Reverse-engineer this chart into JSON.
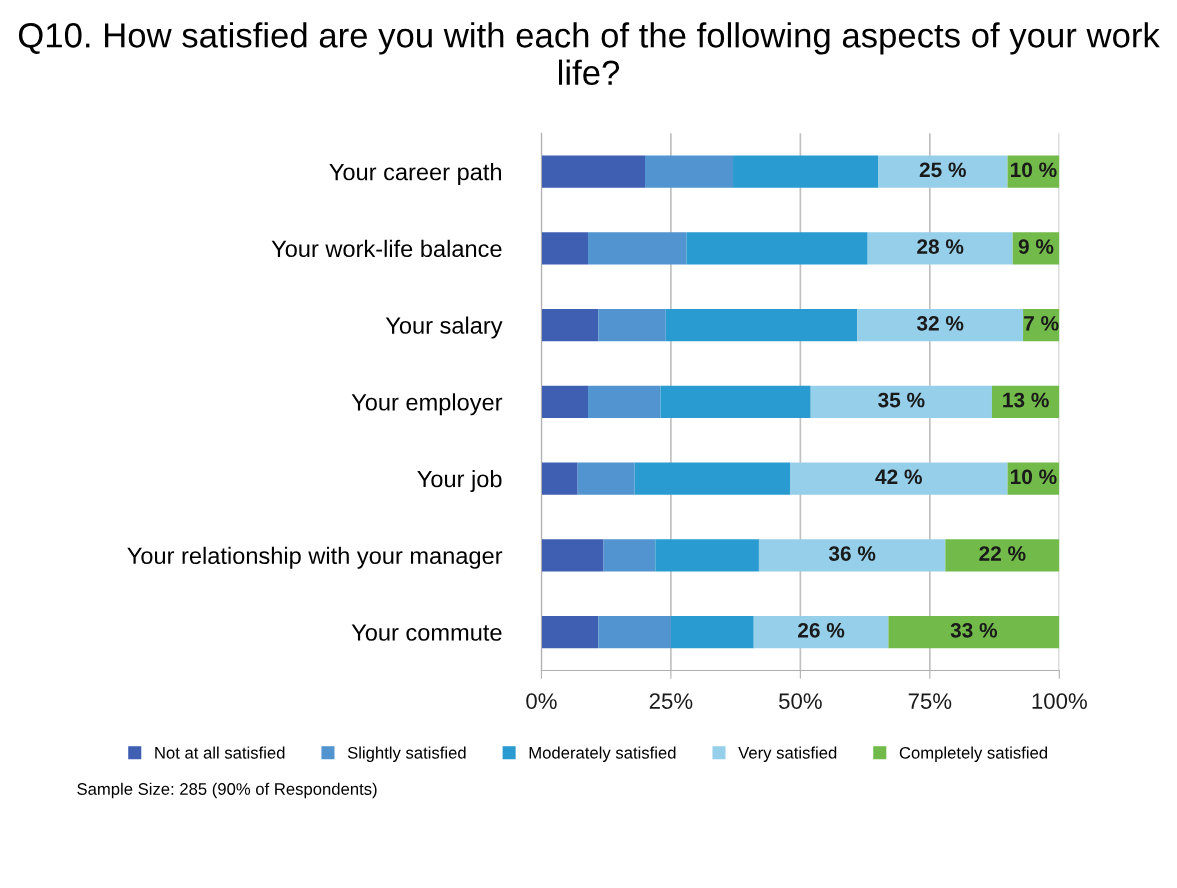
{
  "chart_data": {
    "type": "bar",
    "orientation": "horizontal",
    "stacked": true,
    "title": "Q10. How satisfied are you with each of the following aspects of your work life?",
    "categories": [
      "Your career path",
      "Your work-life balance",
      "Your salary",
      "Your employer",
      "Your job",
      "Your relationship with your manager",
      "Your commute"
    ],
    "series": [
      {
        "name": "Not at all satisfied",
        "color": "#3f5fb3",
        "values": [
          20,
          9,
          11,
          9,
          7,
          12,
          11
        ]
      },
      {
        "name": "Slightly satisfied",
        "color": "#5294cf",
        "values": [
          17,
          19,
          13,
          14,
          11,
          10,
          14
        ]
      },
      {
        "name": "Moderately satisfied",
        "color": "#2a9bd0",
        "values": [
          28,
          35,
          37,
          29,
          30,
          20,
          16
        ]
      },
      {
        "name": "Very satisfied",
        "color": "#96cfea",
        "values": [
          25,
          28,
          32,
          35,
          42,
          36,
          26
        ],
        "value_labels": [
          "25 %",
          "28 %",
          "32 %",
          "35 %",
          "42 %",
          "36 %",
          "26 %"
        ]
      },
      {
        "name": "Completely satisfied",
        "color": "#72bb4b",
        "values": [
          10,
          9,
          7,
          13,
          10,
          22,
          33
        ],
        "value_labels": [
          "10 %",
          "9 %",
          "7 %",
          "13 %",
          "10 %",
          "22 %",
          "33 %"
        ]
      }
    ],
    "xlim": [
      0,
      100
    ],
    "xticks": [
      {
        "value": 0,
        "label": "0%"
      },
      {
        "value": 25,
        "label": "25%"
      },
      {
        "value": 50,
        "label": "50%"
      },
      {
        "value": 75,
        "label": "75%"
      },
      {
        "value": 100,
        "label": "100%"
      }
    ],
    "grid": "x",
    "legend": "bottom",
    "annotations": [
      "Sample Size: 285 (90% of Respondents)"
    ]
  }
}
